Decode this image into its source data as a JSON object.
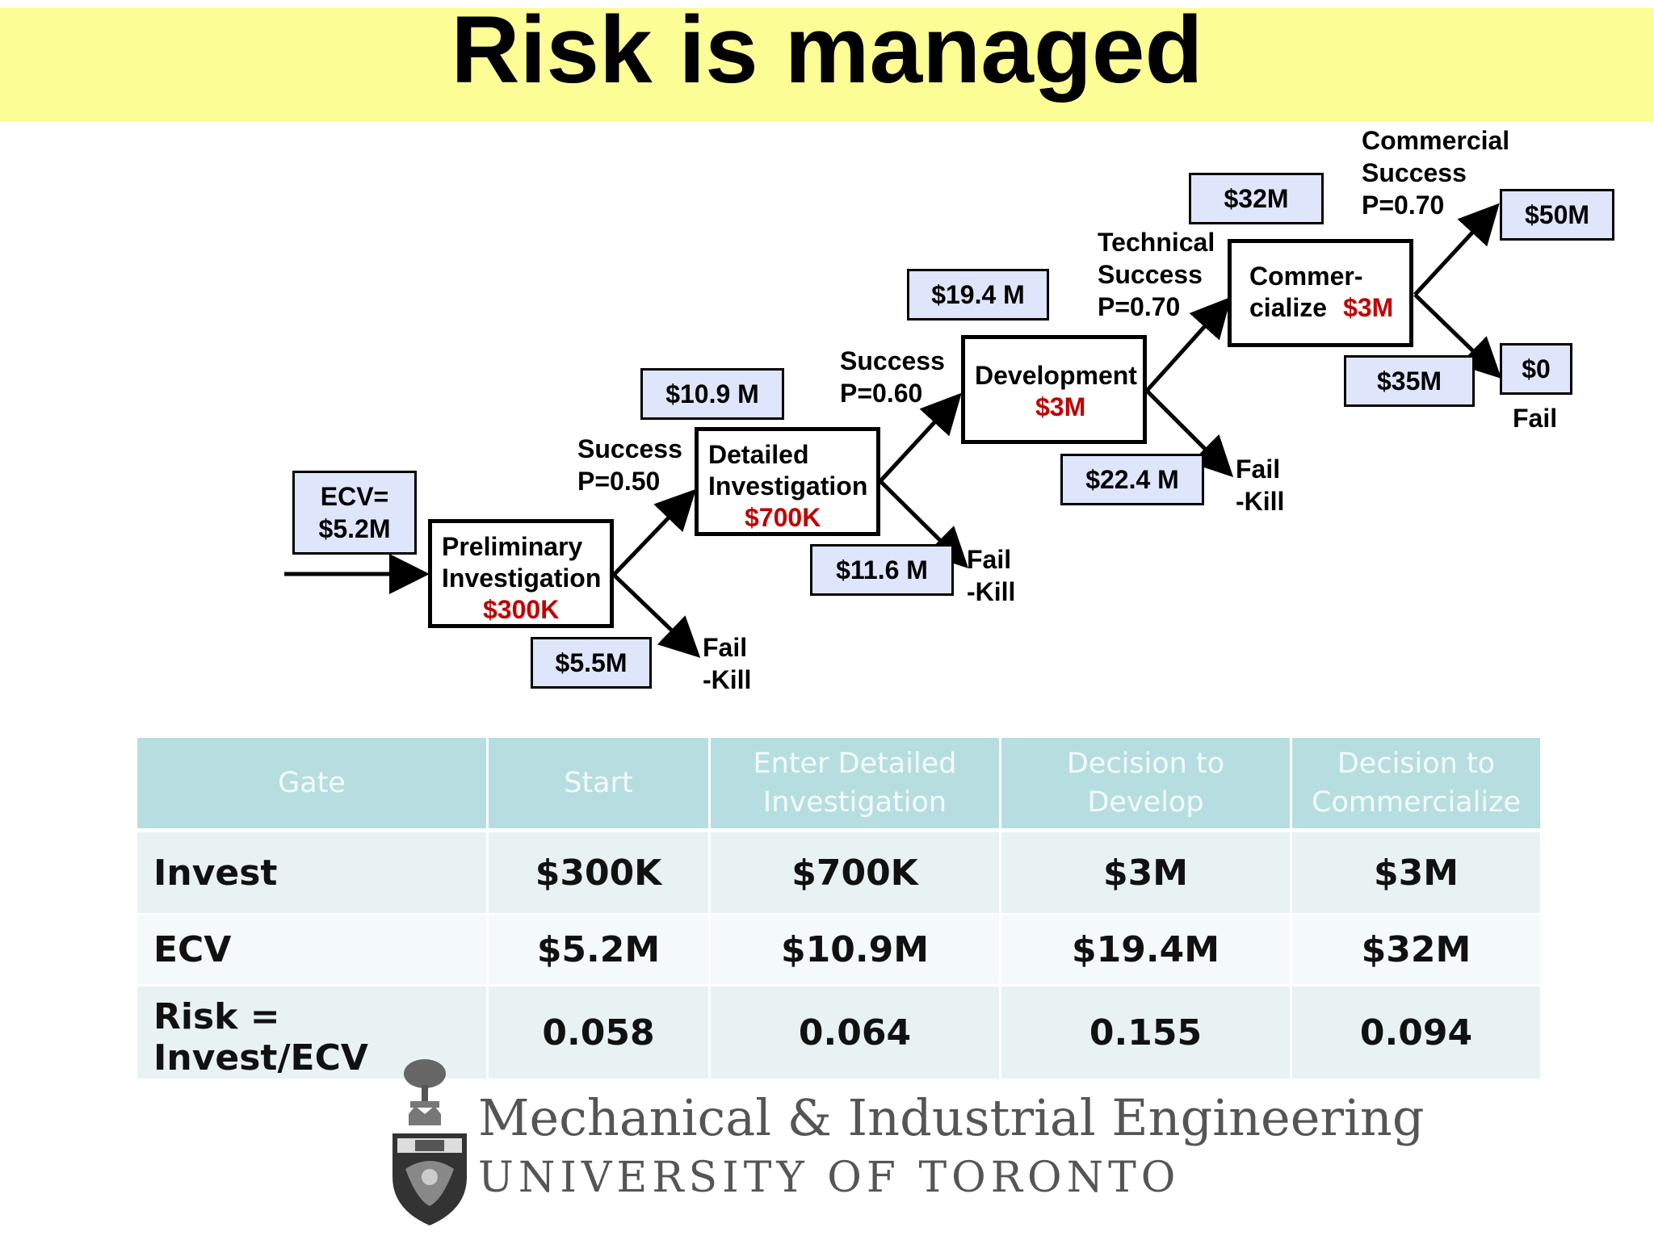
{
  "title": "Risk is managed",
  "diagram": {
    "entry_ecv": {
      "line1": "ECV=",
      "line2": "$5.2M"
    },
    "stages": [
      {
        "line1": "Preliminary",
        "line2": "Investigation",
        "cost": "$300K"
      },
      {
        "line1": "Detailed",
        "line2": "Investigation",
        "cost": "$700K"
      },
      {
        "line1": "Development",
        "cost": "$3M"
      },
      {
        "line1": "Commer-",
        "line2": "cialize",
        "cost": "$3M"
      }
    ],
    "values": {
      "prelim_fail": "$5.5M",
      "detailed_success": "$10.9 M",
      "detailed_fail": "$11.6 M",
      "dev_success": "$19.4 M",
      "dev_fail": "$22.4 M",
      "comm_success": "$32M",
      "comm_fail": "$35M",
      "final_success": "$50M",
      "final_fail": "$0"
    },
    "branch_labels": {
      "success1": {
        "line1": "Success",
        "line2": "P=0.50"
      },
      "success2": {
        "line1": "Success",
        "line2": "P=0.60"
      },
      "technical": {
        "line1": "Technical",
        "line2": "Success",
        "line3": "P=0.70"
      },
      "commercial": {
        "line1": "Commercial",
        "line2": "Success",
        "line3": "P=0.70"
      },
      "fail_kill": {
        "line1": "Fail",
        "line2": "-Kill"
      },
      "fail": "Fail"
    }
  },
  "table": {
    "headers": [
      {
        "line1": "Gate",
        "line2": ""
      },
      {
        "line1": "Start",
        "line2": ""
      },
      {
        "line1": "Enter Detailed",
        "line2": "Investigation"
      },
      {
        "line1": "Decision to",
        "line2": "Develop"
      },
      {
        "line1": "Decision to",
        "line2": "Commercialize"
      }
    ],
    "rows": [
      {
        "label": "Invest",
        "values": [
          "$300K",
          "$700K",
          "$3M",
          "$3M"
        ]
      },
      {
        "label": "ECV",
        "values": [
          "$5.2M",
          "$10.9M",
          "$19.4M",
          "$32M"
        ]
      },
      {
        "label": "Risk = Invest/ECV",
        "values": [
          "0.058",
          "0.064",
          "0.155",
          "0.094"
        ]
      }
    ]
  },
  "logo": {
    "line1": "Mechanical & Industrial Engineering",
    "line2": "UNIVERSITY OF TORONTO",
    "crest_icon": "university-crest-icon"
  }
}
